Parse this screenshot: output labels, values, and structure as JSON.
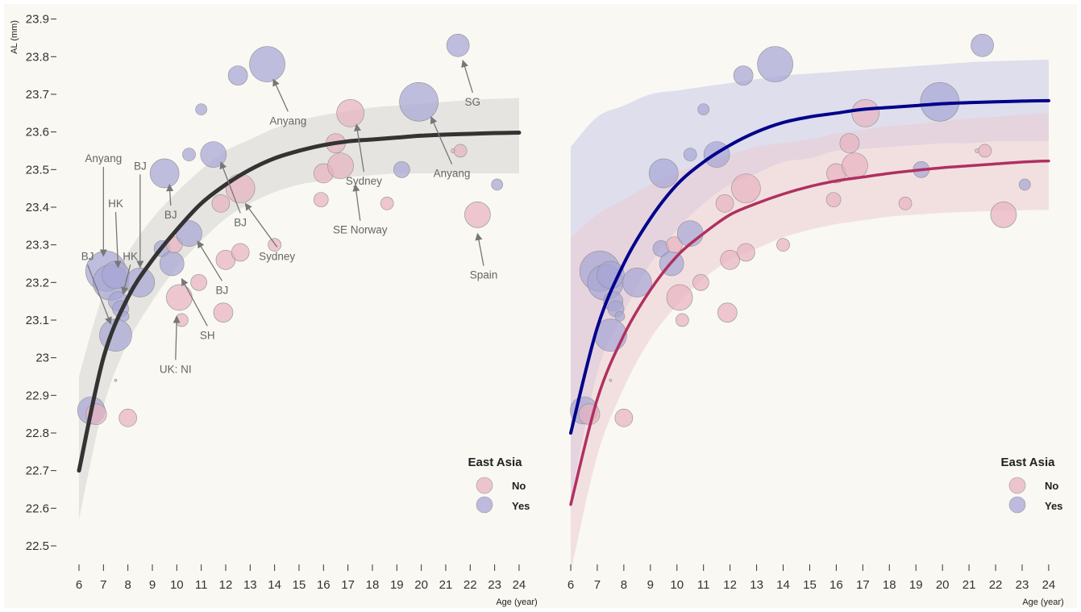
{
  "chart_data": [
    {
      "type": "scatter",
      "panel": "left",
      "xlabel": "Age (year)",
      "ylabel": "AL (mm)",
      "xlim": [
        6,
        24
      ],
      "ylim": [
        22.5,
        23.9
      ],
      "xticks": [
        "6",
        "7",
        "8",
        "9",
        "10",
        "11",
        "12",
        "13",
        "14",
        "15",
        "16",
        "17",
        "18",
        "19",
        "20",
        "21",
        "22",
        "23",
        "24"
      ],
      "yticks": [
        "22.5",
        "22.6",
        "22.7",
        "22.8",
        "22.9",
        "23",
        "23.1",
        "23.2",
        "23.3",
        "23.4",
        "23.5",
        "23.6",
        "23.7",
        "23.8",
        "23.9"
      ],
      "legend": {
        "title": "East Asia",
        "entries": [
          "No",
          "Yes"
        ],
        "colors": [
          "#e7b3c0",
          "#a8a6d6"
        ],
        "position": "bottom-right"
      },
      "fit": {
        "color": "#333333",
        "band_color": "#e2e1dc",
        "points": [
          [
            6,
            22.7
          ],
          [
            7,
            23.0
          ],
          [
            8,
            23.16
          ],
          [
            9,
            23.26
          ],
          [
            10,
            23.34
          ],
          [
            11,
            23.41
          ],
          [
            12,
            23.46
          ],
          [
            13,
            23.5
          ],
          [
            14,
            23.53
          ],
          [
            15,
            23.55
          ],
          [
            16,
            23.565
          ],
          [
            17,
            23.575
          ],
          [
            18,
            23.58
          ],
          [
            19,
            23.585
          ],
          [
            20,
            23.59
          ],
          [
            21,
            23.593
          ],
          [
            22,
            23.595
          ],
          [
            23,
            23.597
          ],
          [
            24,
            23.598
          ]
        ],
        "band": [
          [
            6,
            22.57,
            22.95
          ],
          [
            7,
            22.87,
            23.17
          ],
          [
            8,
            23.04,
            23.28
          ],
          [
            9,
            23.15,
            23.37
          ],
          [
            10,
            23.24,
            23.44
          ],
          [
            11,
            23.31,
            23.5
          ],
          [
            12,
            23.37,
            23.55
          ],
          [
            13,
            23.41,
            23.58
          ],
          [
            14,
            23.44,
            23.61
          ],
          [
            15,
            23.46,
            23.63
          ],
          [
            16,
            23.47,
            23.645
          ],
          [
            17,
            23.48,
            23.655
          ],
          [
            18,
            23.485,
            23.665
          ],
          [
            19,
            23.49,
            23.67
          ],
          [
            20,
            23.49,
            23.675
          ],
          [
            21,
            23.49,
            23.68
          ],
          [
            22,
            23.49,
            23.685
          ],
          [
            23,
            23.49,
            23.688
          ],
          [
            24,
            23.49,
            23.69
          ]
        ]
      },
      "annotations": [
        {
          "text": "Anyang",
          "tx": 7.0,
          "ty": 23.52,
          "ax": 7.0,
          "ay": 23.27
        },
        {
          "text": "BJ",
          "tx": 8.5,
          "ty": 23.5,
          "ax": 8.5,
          "ay": 23.24
        },
        {
          "text": "HK",
          "tx": 7.5,
          "ty": 23.4,
          "ax": 7.6,
          "ay": 23.24
        },
        {
          "text": "HK",
          "tx": 8.1,
          "ty": 23.26,
          "ax": 7.8,
          "ay": 23.17
        },
        {
          "text": "BJ",
          "tx": 6.35,
          "ty": 23.26,
          "ax": 7.3,
          "ay": 23.09
        },
        {
          "text": "BJ",
          "tx": 9.75,
          "ty": 23.37,
          "ax": 9.7,
          "ay": 23.46
        },
        {
          "text": "BJ",
          "tx": 11.85,
          "ty": 23.17,
          "ax": 10.85,
          "ay": 23.31
        },
        {
          "text": "SH",
          "tx": 11.25,
          "ty": 23.05,
          "ax": 10.2,
          "ay": 23.21
        },
        {
          "text": "UK: NI",
          "tx": 9.95,
          "ty": 22.96,
          "ax": 10.0,
          "ay": 23.11
        },
        {
          "text": "BJ",
          "tx": 12.6,
          "ty": 23.35,
          "ax": 11.8,
          "ay": 23.52
        },
        {
          "text": "Sydney",
          "tx": 14.1,
          "ty": 23.26,
          "ax": 12.8,
          "ay": 23.41
        },
        {
          "text": "Anyang",
          "tx": 14.55,
          "ty": 23.62,
          "ax": 13.95,
          "ay": 23.74
        },
        {
          "text": "Sydney",
          "tx": 17.65,
          "ty": 23.46,
          "ax": 17.35,
          "ay": 23.62
        },
        {
          "text": "SE Norway",
          "tx": 17.5,
          "ty": 23.33,
          "ax": 17.3,
          "ay": 23.46
        },
        {
          "text": "Anyang",
          "tx": 21.25,
          "ty": 23.48,
          "ax": 20.4,
          "ay": 23.64
        },
        {
          "text": "SG",
          "tx": 22.1,
          "ty": 23.67,
          "ax": 21.7,
          "ay": 23.79
        },
        {
          "text": "Spain",
          "tx": 22.55,
          "ty": 23.21,
          "ax": 22.3,
          "ay": 23.33
        }
      ]
    },
    {
      "type": "scatter",
      "panel": "right",
      "xlabel": "Age (year)",
      "xlim": [
        6,
        24
      ],
      "ylim": [
        22.5,
        23.9
      ],
      "xticks": [
        "6",
        "7",
        "8",
        "9",
        "10",
        "11",
        "12",
        "13",
        "14",
        "15",
        "16",
        "17",
        "18",
        "19",
        "20",
        "21",
        "22",
        "23",
        "24"
      ],
      "legend": {
        "title": "East Asia",
        "entries": [
          "No",
          "Yes"
        ],
        "colors": [
          "#e7b3c0",
          "#a8a6d6"
        ],
        "position": "bottom-right"
      },
      "fits": [
        {
          "group": "Yes",
          "color": "#00008b",
          "band_color": "#c9c8e6",
          "points": [
            [
              6,
              22.8
            ],
            [
              7,
              23.08
            ],
            [
              8,
              23.25
            ],
            [
              9,
              23.37
            ],
            [
              10,
              23.46
            ],
            [
              11,
              23.52
            ],
            [
              12,
              23.565
            ],
            [
              13,
              23.6
            ],
            [
              14,
              23.625
            ],
            [
              15,
              23.64
            ],
            [
              16,
              23.65
            ],
            [
              17,
              23.66
            ],
            [
              18,
              23.665
            ],
            [
              19,
              23.67
            ],
            [
              20,
              23.675
            ],
            [
              21,
              23.678
            ],
            [
              22,
              23.68
            ],
            [
              23,
              23.682
            ],
            [
              24,
              23.683
            ]
          ],
          "band": [
            [
              6,
              22.62,
              23.56
            ],
            [
              7,
              22.96,
              23.64
            ],
            [
              8,
              23.12,
              23.67
            ],
            [
              9,
              23.25,
              23.7
            ],
            [
              10,
              23.34,
              23.71
            ],
            [
              11,
              23.41,
              23.72
            ],
            [
              12,
              23.46,
              23.73
            ],
            [
              13,
              23.49,
              23.74
            ],
            [
              14,
              23.52,
              23.75
            ],
            [
              15,
              23.53,
              23.755
            ],
            [
              16,
              23.55,
              23.76
            ],
            [
              17,
              23.555,
              23.765
            ],
            [
              18,
              23.56,
              23.77
            ],
            [
              19,
              23.565,
              23.775
            ],
            [
              20,
              23.57,
              23.78
            ],
            [
              21,
              23.57,
              23.785
            ],
            [
              22,
              23.575,
              23.788
            ],
            [
              23,
              23.575,
              23.79
            ],
            [
              24,
              23.575,
              23.792
            ]
          ]
        },
        {
          "group": "No",
          "color": "#b03060",
          "band_color": "#ecc8d0",
          "points": [
            [
              6,
              22.61
            ],
            [
              7,
              22.89
            ],
            [
              8,
              23.06
            ],
            [
              9,
              23.18
            ],
            [
              10,
              23.27
            ],
            [
              11,
              23.33
            ],
            [
              12,
              23.38
            ],
            [
              13,
              23.41
            ],
            [
              14,
              23.435
            ],
            [
              15,
              23.455
            ],
            [
              16,
              23.47
            ],
            [
              17,
              23.48
            ],
            [
              18,
              23.49
            ],
            [
              19,
              23.498
            ],
            [
              20,
              23.505
            ],
            [
              21,
              23.51
            ],
            [
              22,
              23.515
            ],
            [
              23,
              23.52
            ],
            [
              24,
              23.523
            ]
          ],
          "band": [
            [
              6,
              22.43,
              23.32
            ],
            [
              7,
              22.74,
              23.38
            ],
            [
              8,
              22.92,
              23.42
            ],
            [
              9,
              23.05,
              23.46
            ],
            [
              10,
              23.14,
              23.49
            ],
            [
              11,
              23.21,
              23.52
            ],
            [
              12,
              23.26,
              23.54
            ],
            [
              13,
              23.29,
              23.56
            ],
            [
              14,
              23.32,
              23.57
            ],
            [
              15,
              23.34,
              23.58
            ],
            [
              16,
              23.355,
              23.595
            ],
            [
              17,
              23.365,
              23.605
            ],
            [
              18,
              23.375,
              23.615
            ],
            [
              19,
              23.38,
              23.62
            ],
            [
              20,
              23.385,
              23.628
            ],
            [
              21,
              23.388,
              23.635
            ],
            [
              22,
              23.39,
              23.64
            ],
            [
              23,
              23.392,
              23.645
            ],
            [
              24,
              23.393,
              23.65
            ]
          ]
        }
      ]
    }
  ],
  "points": [
    {
      "age": 6.5,
      "al": 22.86,
      "r": 17,
      "group": "Yes"
    },
    {
      "age": 6.7,
      "al": 22.85,
      "r": 13,
      "group": "No"
    },
    {
      "age": 7.1,
      "al": 23.23,
      "r": 25,
      "group": "Yes"
    },
    {
      "age": 7.3,
      "al": 23.2,
      "r": 22,
      "group": "Yes"
    },
    {
      "age": 7.5,
      "al": 23.22,
      "r": 17,
      "group": "Yes"
    },
    {
      "age": 7.5,
      "al": 23.06,
      "r": 20,
      "group": "Yes"
    },
    {
      "age": 7.6,
      "al": 23.15,
      "r": 12,
      "group": "Yes"
    },
    {
      "age": 7.7,
      "al": 23.13,
      "r": 10,
      "group": "Yes"
    },
    {
      "age": 7.85,
      "al": 23.11,
      "r": 6,
      "group": "Yes"
    },
    {
      "age": 7.5,
      "al": 22.94,
      "r": 1.5,
      "group": "No"
    },
    {
      "age": 8.0,
      "al": 22.84,
      "r": 11,
      "group": "No"
    },
    {
      "age": 8.5,
      "al": 23.2,
      "r": 18,
      "group": "Yes"
    },
    {
      "age": 9.4,
      "al": 23.29,
      "r": 10,
      "group": "Yes"
    },
    {
      "age": 9.5,
      "al": 23.49,
      "r": 18,
      "group": "Yes"
    },
    {
      "age": 9.8,
      "al": 23.25,
      "r": 15,
      "group": "Yes"
    },
    {
      "age": 9.9,
      "al": 23.3,
      "r": 10,
      "group": "No"
    },
    {
      "age": 10.1,
      "al": 23.16,
      "r": 16,
      "group": "No"
    },
    {
      "age": 10.2,
      "al": 23.1,
      "r": 8,
      "group": "No"
    },
    {
      "age": 10.5,
      "al": 23.54,
      "r": 8,
      "group": "Yes"
    },
    {
      "age": 10.5,
      "al": 23.33,
      "r": 16,
      "group": "Yes"
    },
    {
      "age": 10.9,
      "al": 23.2,
      "r": 10,
      "group": "No"
    },
    {
      "age": 11.0,
      "al": 23.66,
      "r": 7,
      "group": "Yes"
    },
    {
      "age": 11.5,
      "al": 23.54,
      "r": 16,
      "group": "Yes"
    },
    {
      "age": 11.8,
      "al": 23.41,
      "r": 11,
      "group": "No"
    },
    {
      "age": 11.9,
      "al": 23.12,
      "r": 12,
      "group": "No"
    },
    {
      "age": 12.0,
      "al": 23.26,
      "r": 12,
      "group": "No"
    },
    {
      "age": 12.5,
      "al": 23.75,
      "r": 12,
      "group": "Yes"
    },
    {
      "age": 12.6,
      "al": 23.28,
      "r": 11,
      "group": "No"
    },
    {
      "age": 12.6,
      "al": 23.45,
      "r": 18,
      "group": "No"
    },
    {
      "age": 13.7,
      "al": 23.78,
      "r": 22,
      "group": "Yes"
    },
    {
      "age": 14.0,
      "al": 23.3,
      "r": 8,
      "group": "No"
    },
    {
      "age": 15.9,
      "al": 23.42,
      "r": 9,
      "group": "No"
    },
    {
      "age": 16.0,
      "al": 23.49,
      "r": 12,
      "group": "No"
    },
    {
      "age": 16.5,
      "al": 23.57,
      "r": 12,
      "group": "No"
    },
    {
      "age": 16.7,
      "al": 23.51,
      "r": 16,
      "group": "No"
    },
    {
      "age": 17.1,
      "al": 23.65,
      "r": 17,
      "group": "No"
    },
    {
      "age": 18.6,
      "al": 23.41,
      "r": 8,
      "group": "No"
    },
    {
      "age": 19.2,
      "al": 23.5,
      "r": 10,
      "group": "Yes"
    },
    {
      "age": 19.9,
      "al": 23.68,
      "r": 24,
      "group": "Yes"
    },
    {
      "age": 21.3,
      "al": 23.55,
      "r": 2.5,
      "group": "No"
    },
    {
      "age": 21.6,
      "al": 23.55,
      "r": 8,
      "group": "No"
    },
    {
      "age": 21.5,
      "al": 23.83,
      "r": 14,
      "group": "Yes"
    },
    {
      "age": 22.3,
      "al": 23.38,
      "r": 16,
      "group": "No"
    },
    {
      "age": 23.1,
      "al": 23.46,
      "r": 7,
      "group": "Yes"
    }
  ]
}
